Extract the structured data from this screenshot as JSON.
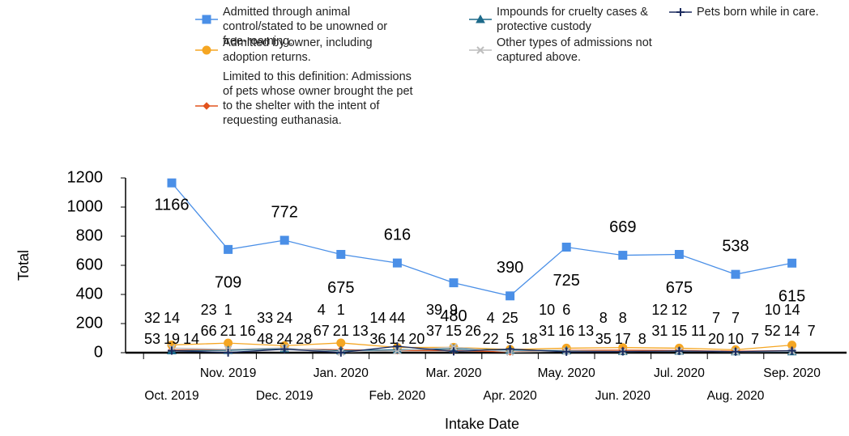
{
  "chart_data": {
    "type": "line",
    "x_label": "Intake Date",
    "y_label": "Total",
    "categories": [
      "Oct. 2019",
      "Nov. 2019",
      "Dec. 2019",
      "Jan. 2020",
      "Feb. 2020",
      "Mar. 2020",
      "Apr. 2020",
      "May. 2020",
      "Jun. 2020",
      "Jul. 2020",
      "Aug. 2020",
      "Sep. 2020"
    ],
    "ylim": [
      0,
      1200
    ],
    "yticks": [
      0,
      200,
      400,
      600,
      800,
      1000,
      1200
    ],
    "series": [
      {
        "name": "Admitted through animal control/stated to be unowned or free-roaming.",
        "color": "#4a8fe7",
        "marker": "square",
        "values": [
          1166,
          709,
          772,
          675,
          616,
          480,
          390,
          725,
          669,
          675,
          538,
          615
        ]
      },
      {
        "name": "Admitted by owner, including adoption returns.",
        "color": "#f5a623",
        "marker": "circle",
        "values": [
          53,
          66,
          48,
          67,
          36,
          37,
          22,
          31,
          35,
          31,
          20,
          52
        ]
      },
      {
        "name": "Limited to this definition: Admissions of pets whose owner brought the pet to the shelter with the intent of requesting euthanasia.",
        "color": "#e2531d",
        "marker": "diamond",
        "values": [
          19,
          21,
          24,
          21,
          14,
          15,
          5,
          16,
          17,
          15,
          10,
          14
        ]
      },
      {
        "name": "Impounds for cruelty cases & protective custody",
        "color": "#1d6a8a",
        "marker": "triangle",
        "values": [
          14,
          16,
          28,
          13,
          20,
          26,
          18,
          13,
          8,
          11,
          7,
          7
        ]
      },
      {
        "name": "Other types of admissions not captured above.",
        "color": "#bdbdbd",
        "marker": "x",
        "values": [
          32,
          23,
          33,
          4,
          14,
          39,
          4,
          10,
          8,
          12,
          7,
          10
        ]
      },
      {
        "name": "Pets born while in care.",
        "color": "#1b2b5e",
        "marker": "plus",
        "values": [
          14,
          1,
          24,
          1,
          44,
          9,
          25,
          6,
          8,
          12,
          7,
          14
        ]
      }
    ]
  }
}
